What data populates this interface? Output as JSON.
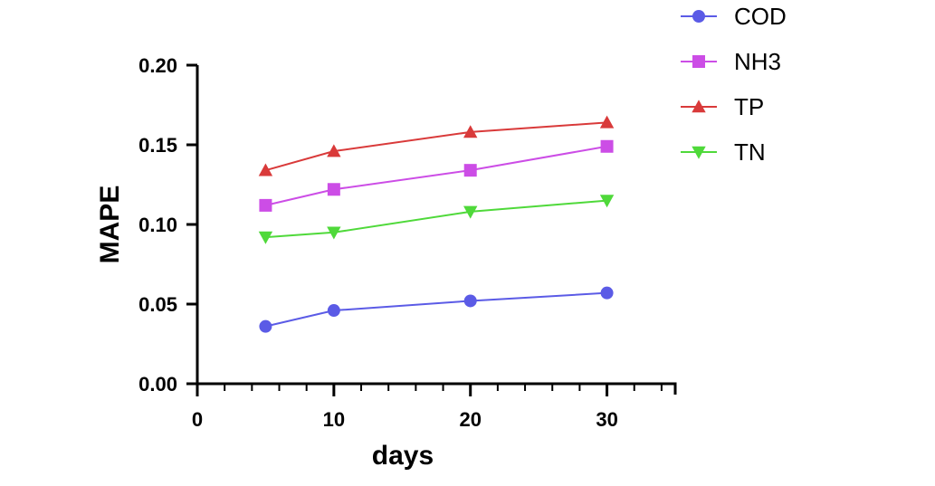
{
  "chart_data": {
    "type": "line",
    "title": "",
    "xlabel": "days",
    "ylabel": "MAPE",
    "xlim": [
      0,
      35
    ],
    "ylim": [
      0,
      0.2
    ],
    "x_ticks": [
      0,
      10,
      20,
      30
    ],
    "x_tick_labels": [
      "0",
      "10",
      "20",
      "30"
    ],
    "x_minor_step": 2,
    "y_ticks": [
      0,
      0.05,
      0.1,
      0.15,
      0.2
    ],
    "y_tick_labels": [
      "0.00",
      "0.05",
      "0.10",
      "0.15",
      "0.20"
    ],
    "grid": false,
    "legend_position": "top-right",
    "x": [
      5,
      10,
      20,
      30
    ],
    "series": [
      {
        "name": "COD",
        "values": [
          0.036,
          0.046,
          0.052,
          0.057
        ],
        "color": "#5b5be6",
        "marker": "circle"
      },
      {
        "name": "NH3",
        "values": [
          0.112,
          0.122,
          0.134,
          0.149
        ],
        "color": "#cc4de6",
        "marker": "square"
      },
      {
        "name": "TP",
        "values": [
          0.134,
          0.146,
          0.158,
          0.164
        ],
        "color": "#d93a3a",
        "marker": "triangle-up"
      },
      {
        "name": "TN",
        "values": [
          0.092,
          0.095,
          0.108,
          0.115
        ],
        "color": "#4fd93a",
        "marker": "triangle-down"
      }
    ]
  }
}
